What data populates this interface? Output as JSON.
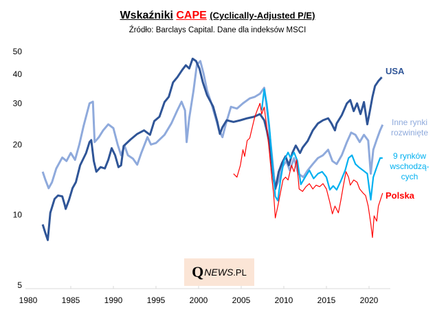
{
  "header": {
    "title_main": "Wskaźniki",
    "title_highlight": "CAPE",
    "title_paren": "(Cyclically-Adjusted P/E)",
    "subtitle": "Źródło:  Barclays Capital. Dane dla indeksów MSCI"
  },
  "logo": {
    "q": "Q",
    "news": "NEWS",
    "domain": ".PL"
  },
  "colors": {
    "usa": "#2f5597",
    "inne": "#8faadc",
    "em": "#00b0f0",
    "polska": "#ff0000",
    "axis": "#d9d9d9",
    "logo_bg": "#fbe5d6"
  },
  "chart_data": {
    "type": "line",
    "title": "Wskaźniki CAPE (Cyclically-Adjusted P/E)",
    "subtitle": "Źródło: Barclays Capital. Dane dla indeksów MSCI",
    "xlabel": "",
    "ylabel": "",
    "y_scale": "log",
    "xlim": [
      1980,
      2022.5
    ],
    "ylim": [
      5,
      50
    ],
    "x_ticks": [
      1980,
      1985,
      1990,
      1995,
      2000,
      2005,
      2010,
      2015,
      2020
    ],
    "y_ticks": [
      5,
      10,
      20,
      30,
      40,
      50
    ],
    "grid": false,
    "legend": "inline labels at right end of each series",
    "series": [
      {
        "name": "USA",
        "label_lines": [
          "USA"
        ],
        "color_key": "usa",
        "x": [
          1981.7,
          1982.0,
          1982.3,
          1982.6,
          1983.1,
          1983.5,
          1984.0,
          1984.3,
          1984.4,
          1984.8,
          1985.2,
          1985.6,
          1986.1,
          1986.8,
          1987.2,
          1987.4,
          1987.7,
          1988.0,
          1988.5,
          1989.0,
          1989.4,
          1989.8,
          1990.2,
          1990.6,
          1990.9,
          1991.2,
          1992.0,
          1992.8,
          1993.6,
          1994.3,
          1994.8,
          1995.4,
          1996.0,
          1996.5,
          1997.0,
          1997.5,
          1998.1,
          1998.5,
          1998.9,
          1999.3,
          1999.7,
          2000.1,
          2000.5,
          2001.0,
          2001.7,
          2002.2,
          2002.5,
          2002.8,
          2003.3,
          2004.1,
          2004.9,
          2005.7,
          2006.5,
          2007.2,
          2007.7,
          2008.0,
          2008.4,
          2008.8,
          2009.0,
          2009.4,
          2009.8,
          2010.2,
          2010.6,
          2011.0,
          2011.4,
          2011.9,
          2012.2,
          2012.8,
          2013.4,
          2014.0,
          2014.6,
          2015.2,
          2015.6,
          2016.0,
          2016.2,
          2016.8,
          2017.4,
          2017.8,
          2018.2,
          2018.6,
          2019.0,
          2019.4,
          2019.8,
          2020.1,
          2020.4,
          2020.7,
          2021.1,
          2021.5
        ],
        "values": [
          9.1,
          8.4,
          7.8,
          10.2,
          11.7,
          12.1,
          12.0,
          11.0,
          10.6,
          11.6,
          13.0,
          13.8,
          16.3,
          18.4,
          20.5,
          20.9,
          17.0,
          15.3,
          16.0,
          15.8,
          17.2,
          19.3,
          18.0,
          16.0,
          16.3,
          19.7,
          21.0,
          22.2,
          23.0,
          22.0,
          25.2,
          26.3,
          30.4,
          32.0,
          36.9,
          38.8,
          41.8,
          43.7,
          42.3,
          46.6,
          45.5,
          42.3,
          36.9,
          32.5,
          29.1,
          25.0,
          22.2,
          23.7,
          25.4,
          25.0,
          25.4,
          25.9,
          26.3,
          27.0,
          25.4,
          23.0,
          19.4,
          14.2,
          12.9,
          15.3,
          16.7,
          17.8,
          16.3,
          18.4,
          19.8,
          18.4,
          19.4,
          20.7,
          23.0,
          24.6,
          25.4,
          25.9,
          24.6,
          23.0,
          24.6,
          26.7,
          30.0,
          31.0,
          27.8,
          30.0,
          27.0,
          30.4,
          24.4,
          27.8,
          32.0,
          35.6,
          37.4,
          38.8
        ]
      },
      {
        "name": "Inne rynki rozwinięte",
        "label_lines": [
          "Inne rynki",
          "rozwinięte"
        ],
        "color_key": "inne",
        "x": [
          1981.7,
          1982.0,
          1982.4,
          1982.8,
          1983.3,
          1984.0,
          1984.5,
          1985.0,
          1985.5,
          1986.0,
          1986.5,
          1987.2,
          1987.6,
          1987.8,
          1988.3,
          1988.8,
          1989.4,
          1990.0,
          1990.5,
          1990.9,
          1991.3,
          1991.7,
          1992.3,
          1992.8,
          1993.3,
          1994.0,
          1994.4,
          1995.0,
          1996.0,
          1996.8,
          1997.5,
          1998.0,
          1998.4,
          1998.6,
          1998.9,
          1999.4,
          1999.8,
          2000.2,
          2000.6,
          2001.0,
          2001.5,
          2002.0,
          2002.4,
          2002.8,
          2003.2,
          2003.8,
          2004.5,
          2005.2,
          2006.0,
          2006.6,
          2007.2,
          2007.7,
          2008.1,
          2008.6,
          2009.0,
          2009.4,
          2009.8,
          2010.3,
          2010.7,
          2011.2,
          2011.7,
          2012.3,
          2012.8,
          2013.4,
          2014.0,
          2014.6,
          2015.2,
          2015.7,
          2016.2,
          2016.8,
          2017.4,
          2017.9,
          2018.4,
          2018.9,
          2019.4,
          2019.9,
          2020.2,
          2020.5,
          2020.9,
          2021.3,
          2021.6
        ],
        "values": [
          15.3,
          14.2,
          13.0,
          13.8,
          15.8,
          17.6,
          17.0,
          18.4,
          17.2,
          20.0,
          24.0,
          30.0,
          30.5,
          20.5,
          21.5,
          23.0,
          24.4,
          23.5,
          20.0,
          18.0,
          19.8,
          18.0,
          17.4,
          16.4,
          18.5,
          21.5,
          20.0,
          20.3,
          22.0,
          24.6,
          28.0,
          30.5,
          28.0,
          20.5,
          26.0,
          34.0,
          44.0,
          45.5,
          40.0,
          34.0,
          30.0,
          26.0,
          23.0,
          21.5,
          24.5,
          29.0,
          28.5,
          30.0,
          31.5,
          32.0,
          33.0,
          35.0,
          27.0,
          18.0,
          13.0,
          14.0,
          16.0,
          17.0,
          15.5,
          17.5,
          15.0,
          14.5,
          15.5,
          16.5,
          17.5,
          18.0,
          19.0,
          17.0,
          16.5,
          18.0,
          20.5,
          22.5,
          22.0,
          20.5,
          22.0,
          20.8,
          15.0,
          19.0,
          21.0,
          23.0,
          24.3
        ]
      },
      {
        "name": "9 rynków wschodzących",
        "label_lines": [
          "9 rynków",
          "wschodzą-",
          "cych"
        ],
        "color_key": "em",
        "x": [
          2007.4,
          2007.7,
          2008.0,
          2008.3,
          2008.7,
          2009.0,
          2009.3,
          2009.6,
          2010.0,
          2010.5,
          2010.8,
          2011.2,
          2011.6,
          2012.0,
          2012.5,
          2013.0,
          2013.5,
          2014.0,
          2014.5,
          2015.0,
          2015.4,
          2015.8,
          2016.2,
          2016.7,
          2017.2,
          2017.6,
          2018.0,
          2018.4,
          2018.8,
          2019.3,
          2019.8,
          2020.2,
          2020.5,
          2020.9,
          2021.3,
          2021.6
        ],
        "values": [
          28.0,
          34.5,
          30.0,
          24.0,
          16.0,
          12.0,
          11.5,
          14.0,
          17.0,
          18.5,
          17.5,
          18.5,
          17.0,
          13.5,
          14.5,
          15.5,
          14.3,
          15.0,
          15.3,
          14.5,
          12.8,
          13.3,
          12.8,
          14.0,
          15.5,
          17.5,
          18.0,
          16.5,
          16.0,
          15.5,
          15.0,
          11.6,
          14.5,
          16.0,
          17.5,
          17.5
        ]
      },
      {
        "name": "Polska",
        "label_lines": [
          "Polska"
        ],
        "color_key": "polska",
        "x": [
          2004.1,
          2004.5,
          2004.9,
          2005.2,
          2005.4,
          2005.7,
          2006.0,
          2006.3,
          2006.6,
          2006.9,
          2007.2,
          2007.4,
          2007.7,
          2008.0,
          2008.3,
          2008.6,
          2008.8,
          2009.0,
          2009.3,
          2009.6,
          2009.9,
          2010.2,
          2010.5,
          2010.9,
          2011.2,
          2011.5,
          2011.8,
          2012.2,
          2012.6,
          2013.0,
          2013.4,
          2013.8,
          2014.2,
          2014.6,
          2015.0,
          2015.4,
          2015.7,
          2016.0,
          2016.4,
          2016.7,
          2017.0,
          2017.3,
          2017.6,
          2017.8,
          2018.2,
          2018.6,
          2018.9,
          2019.3,
          2019.6,
          2019.9,
          2020.2,
          2020.4,
          2020.6,
          2020.9,
          2021.1,
          2021.5,
          2021.6
        ],
        "values": [
          15.0,
          14.5,
          16.3,
          19.0,
          17.8,
          20.8,
          21.3,
          23.7,
          26.3,
          28.2,
          30.0,
          27.0,
          28.9,
          23.7,
          18.7,
          14.3,
          12.4,
          9.7,
          10.9,
          12.4,
          14.1,
          14.5,
          14.1,
          16.3,
          15.3,
          17.2,
          12.9,
          12.6,
          13.2,
          13.6,
          12.9,
          13.4,
          13.2,
          13.6,
          12.9,
          11.3,
          10.1,
          10.9,
          10.2,
          11.6,
          13.4,
          15.3,
          14.5,
          13.4,
          14.1,
          13.8,
          12.9,
          12.4,
          12.1,
          10.9,
          9.2,
          8.0,
          9.9,
          9.4,
          10.9,
          12.1,
          12.4
        ]
      }
    ]
  }
}
